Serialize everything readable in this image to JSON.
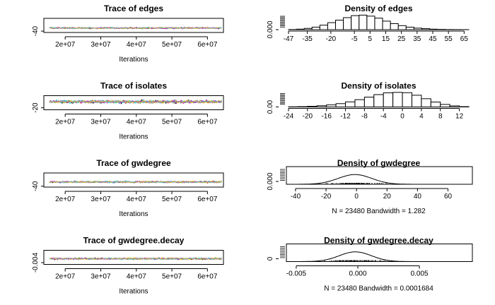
{
  "chart_data": [
    {
      "type": "line",
      "title": "Trace of edges",
      "xlabel": "Iterations",
      "x_ticks": [
        "2e+07",
        "3e+07",
        "4e+07",
        "5e+07",
        "6e+07"
      ],
      "x_tick_values": [
        20000000,
        30000000,
        40000000,
        50000000,
        60000000
      ],
      "xlim": [
        14000000,
        64500000
      ],
      "y_ticks": [
        "-40"
      ],
      "y_tick_values": [
        -40
      ],
      "ylim": [
        -52,
        75
      ],
      "trace_center": -12,
      "trace_spread": 6,
      "series_colors": [
        "#000000",
        "#df536b",
        "#61d04f",
        "#2297e6",
        "#28e2e5",
        "#cd0bbc",
        "#f5c710",
        "#9e9e9e"
      ]
    },
    {
      "type": "bar",
      "title": "Density of edges",
      "x_ticks": [
        "-47",
        "-35",
        "-20",
        "-5",
        "5",
        "15",
        "25",
        "35",
        "45",
        "55",
        "65"
      ],
      "x_tick_values": [
        -47,
        -35,
        -20,
        -5,
        5,
        15,
        25,
        35,
        45,
        55,
        65
      ],
      "bin_edges": [
        -47,
        -42,
        -37,
        -32,
        -27,
        -22,
        -17,
        -12,
        -7,
        -2,
        3,
        8,
        13,
        18,
        23,
        28,
        33,
        38,
        43,
        48,
        53,
        58,
        63,
        68
      ],
      "values": [
        0.0003,
        0.001,
        0.0025,
        0.005,
        0.009,
        0.014,
        0.019,
        0.024,
        0.028,
        0.029,
        0.027,
        0.023,
        0.017,
        0.012,
        0.008,
        0.005,
        0.003,
        0.002,
        0.001,
        0.0006,
        0.0003,
        0.0002,
        0.0001
      ],
      "y_ticks": [
        "0.000"
      ],
      "y_tick_values": [
        0
      ],
      "ylim": [
        0,
        0.031
      ]
    },
    {
      "type": "line",
      "title": "Trace of isolates",
      "xlabel": "Iterations",
      "x_ticks": [
        "2e+07",
        "3e+07",
        "4e+07",
        "5e+07",
        "6e+07"
      ],
      "x_tick_values": [
        20000000,
        30000000,
        40000000,
        50000000,
        60000000
      ],
      "xlim": [
        14000000,
        64500000
      ],
      "y_ticks": [
        "-20"
      ],
      "y_tick_values": [
        -20
      ],
      "ylim": [
        -26,
        16
      ],
      "trace_center": -2,
      "trace_spread": 4,
      "series_colors": [
        "#000000",
        "#df536b",
        "#61d04f",
        "#2297e6",
        "#28e2e5",
        "#cd0bbc",
        "#f5c710",
        "#9e9e9e"
      ]
    },
    {
      "type": "bar",
      "title": "Density of isolates",
      "x_ticks": [
        "-24",
        "-20",
        "-16",
        "-12",
        "-8",
        "-4",
        "0",
        "4",
        "8",
        "12"
      ],
      "x_tick_values": [
        -24,
        -20,
        -16,
        -12,
        -8,
        -4,
        0,
        4,
        8,
        12
      ],
      "bin_edges": [
        -24,
        -22,
        -20,
        -18,
        -16,
        -14,
        -12,
        -10,
        -8,
        -6,
        -4,
        -2,
        0,
        2,
        4,
        6,
        8,
        10,
        12,
        14
      ],
      "values": [
        0.001,
        0.002,
        0.004,
        0.008,
        0.013,
        0.021,
        0.032,
        0.046,
        0.062,
        0.078,
        0.089,
        0.092,
        0.09,
        0.074,
        0.052,
        0.031,
        0.016,
        0.007,
        0.002
      ],
      "y_ticks": [
        "0.00"
      ],
      "y_tick_values": [
        0
      ],
      "ylim": [
        0,
        0.098
      ]
    },
    {
      "type": "line",
      "title": "Trace of gwdegree",
      "xlabel": "Iterations",
      "x_ticks": [
        "2e+07",
        "3e+07",
        "4e+07",
        "5e+07",
        "6e+07"
      ],
      "x_tick_values": [
        20000000,
        30000000,
        40000000,
        50000000,
        60000000
      ],
      "xlim": [
        14000000,
        64500000
      ],
      "y_ticks": [
        "-40"
      ],
      "y_tick_values": [
        -40
      ],
      "ylim": [
        -48,
        78
      ],
      "trace_center": -2,
      "trace_spread": 7,
      "series_colors": [
        "#000000",
        "#df536b",
        "#61d04f",
        "#2297e6",
        "#28e2e5",
        "#cd0bbc",
        "#f5c710",
        "#9e9e9e"
      ]
    },
    {
      "type": "line",
      "title": "Density of gwdegree",
      "xlabel": "N = 23480   Bandwidth = 1.282",
      "x_ticks": [
        "-40",
        "-20",
        "0",
        "20",
        "40",
        "60"
      ],
      "x_tick_values": [
        -40,
        -20,
        0,
        20,
        40,
        60
      ],
      "xlim": [
        -46,
        76
      ],
      "density_mean": -1,
      "density_sd": 11,
      "y_ticks": [
        "0.000"
      ],
      "y_tick_values": [
        0
      ],
      "ylim": [
        0,
        0.038
      ]
    },
    {
      "type": "line",
      "title": "Trace of gwdegree.decay",
      "xlabel": "Iterations",
      "x_ticks": [
        "2e+07",
        "3e+07",
        "4e+07",
        "5e+07",
        "6e+07"
      ],
      "x_tick_values": [
        20000000,
        30000000,
        40000000,
        50000000,
        60000000
      ],
      "xlim": [
        14000000,
        64500000
      ],
      "y_ticks": [
        "-0.004"
      ],
      "y_tick_values": [
        -0.004
      ],
      "ylim": [
        -0.0058,
        0.0085
      ],
      "trace_center": 0,
      "trace_spread": 0.0008,
      "series_colors": [
        "#000000",
        "#df536b",
        "#61d04f",
        "#2297e6",
        "#28e2e5",
        "#cd0bbc",
        "#f5c710",
        "#9e9e9e"
      ]
    },
    {
      "type": "line",
      "title": "Density of gwdegree.decay",
      "xlabel": "N = 23480   Bandwidth = 0.0001684",
      "x_ticks": [
        "-0.005",
        "0.000",
        "0.005"
      ],
      "x_tick_values": [
        -0.005,
        0,
        0.005
      ],
      "xlim": [
        -0.0058,
        0.0093
      ],
      "density_mean": -0.0002,
      "density_sd": 0.0013,
      "y_ticks": [
        "0"
      ],
      "y_tick_values": [
        0
      ],
      "ylim": [
        0,
        340
      ]
    }
  ]
}
